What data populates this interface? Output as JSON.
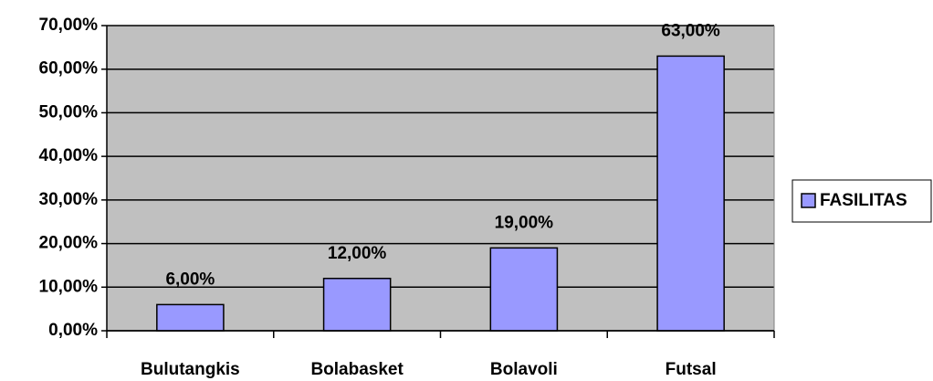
{
  "chart_data": {
    "type": "bar",
    "categories": [
      "Bulutangkis",
      "Bolabasket",
      "Bolavoli",
      "Futsal"
    ],
    "series": [
      {
        "name": "FASILITAS",
        "color": "#9999ff",
        "values": [
          6,
          12,
          19,
          63
        ],
        "value_labels": [
          "6,00%",
          "12,00%",
          "19,00%",
          "63,00%"
        ]
      }
    ],
    "ylim": [
      0,
      70
    ],
    "yticks": [
      {
        "value": 0,
        "label": "0,00%"
      },
      {
        "value": 10,
        "label": "10,00%"
      },
      {
        "value": 20,
        "label": "20,00%"
      },
      {
        "value": 30,
        "label": "30,00%"
      },
      {
        "value": 40,
        "label": "40,00%"
      },
      {
        "value": 50,
        "label": "50,00%"
      },
      {
        "value": 60,
        "label": "60,00%"
      },
      {
        "value": 70,
        "label": "70,00%"
      }
    ],
    "grid": true,
    "legend": "right"
  }
}
